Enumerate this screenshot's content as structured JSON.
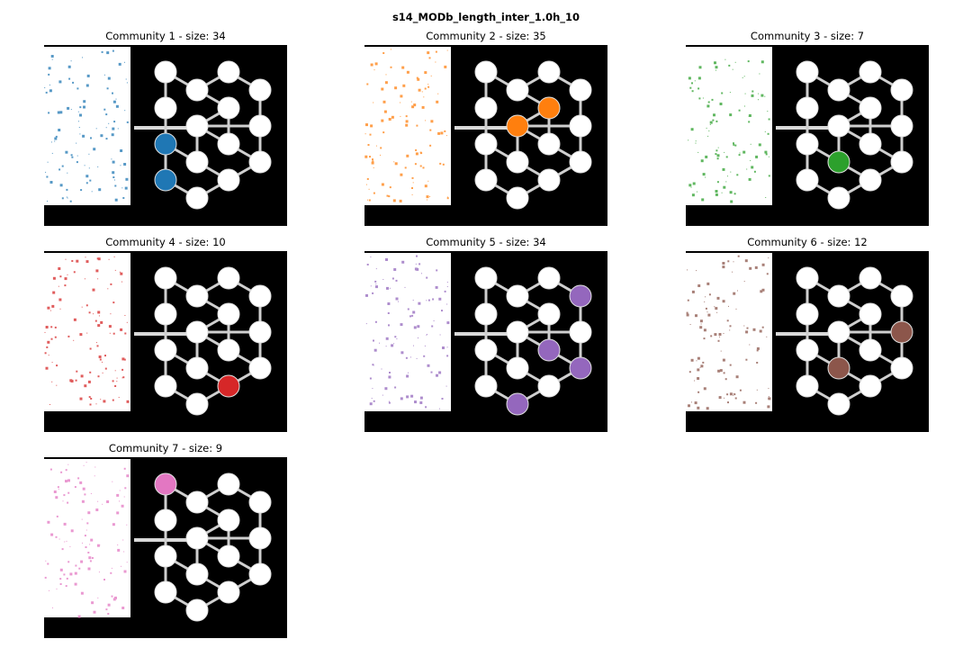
{
  "figure": {
    "title": "s14_MODb_length_inter_1.0h_10"
  },
  "panels": [
    {
      "title": "Community 1 - size: 34",
      "color": "#1f77b4",
      "fill_nodes": [
        9,
        10
      ]
    },
    {
      "title": "Community 2 - size: 35",
      "color": "#ff7f0e",
      "fill_nodes": [
        5,
        6
      ]
    },
    {
      "title": "Community 3 - size: 7",
      "color": "#2ca02c",
      "fill_nodes": [
        11
      ]
    },
    {
      "title": "Community 4 - size: 10",
      "color": "#d62728",
      "fill_nodes": [
        13
      ]
    },
    {
      "title": "Community 5 - size: 34",
      "color": "#9467bd",
      "fill_nodes": [
        3,
        8,
        12,
        14
      ]
    },
    {
      "title": "Community 6 - size: 12",
      "color": "#8c564b",
      "fill_nodes": [
        7,
        11
      ]
    },
    {
      "title": "Community 7 - size: 9",
      "color": "#e377c2",
      "fill_nodes": [
        0
      ]
    }
  ]
}
